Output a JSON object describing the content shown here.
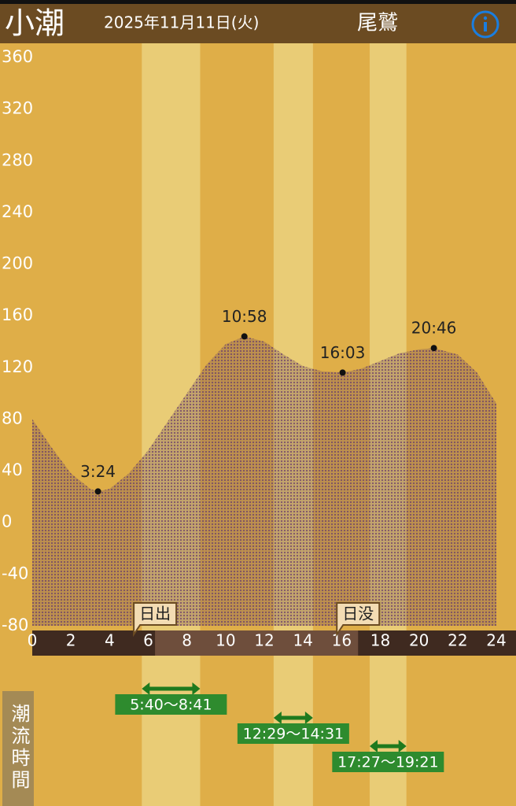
{
  "chart_data": {
    "type": "area",
    "title": "小潮",
    "date": "2025年11月11日(火)",
    "location": "尾鷲",
    "flow_heading": "潮流時間",
    "x": [
      0,
      1,
      2,
      3,
      3.4,
      4,
      5,
      6,
      7,
      8,
      9,
      10,
      10.97,
      12,
      13,
      14,
      15,
      16.05,
      17,
      18,
      19,
      20,
      20.77,
      22,
      23,
      24
    ],
    "values": [
      80,
      58,
      38,
      26,
      24,
      26,
      38,
      56,
      78,
      100,
      122,
      138,
      144,
      140,
      130,
      121,
      117,
      116,
      119,
      125,
      131,
      134,
      135,
      130,
      116,
      92
    ],
    "color": "#7d5a5c",
    "extremes": [
      {
        "label": "3:24",
        "x": 3.4,
        "value": 24
      },
      {
        "label": "10:58",
        "x": 10.97,
        "value": 144
      },
      {
        "label": "16:03",
        "x": 16.05,
        "value": 116
      },
      {
        "label": "20:46",
        "x": 20.77,
        "value": 135
      }
    ],
    "sun": [
      {
        "label": "日出",
        "x": 6.35
      },
      {
        "label": "日没",
        "x": 16.85
      }
    ],
    "flow_periods": [
      {
        "label": "5:40〜8:41",
        "start": 5.667,
        "end": 8.683
      },
      {
        "label": "12:29〜14:31",
        "start": 12.483,
        "end": 14.517
      },
      {
        "label": "17:27〜19:21",
        "start": 17.45,
        "end": 19.35
      }
    ],
    "xlim": [
      0,
      24
    ],
    "xticks": [
      0,
      2,
      4,
      6,
      8,
      10,
      12,
      14,
      16,
      18,
      20,
      22,
      24
    ],
    "ylim": [
      -80,
      360
    ],
    "yticks": [
      -80,
      -40,
      0,
      40,
      80,
      120,
      160,
      200,
      240,
      280,
      320,
      360
    ]
  }
}
